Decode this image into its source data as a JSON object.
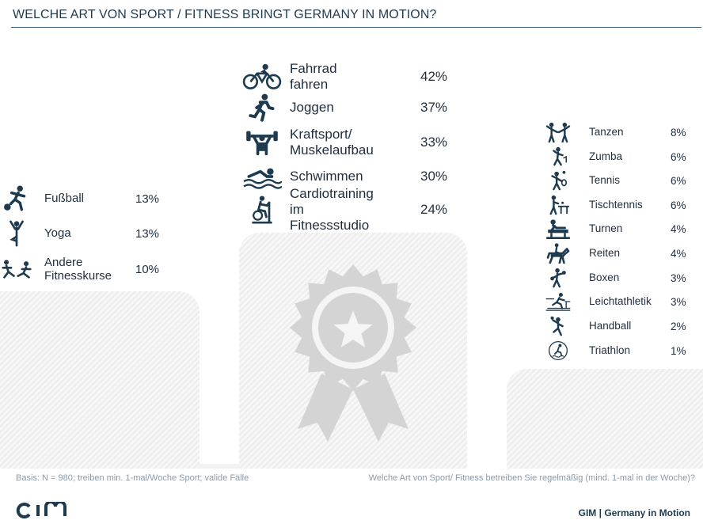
{
  "title": "WELCHE ART VON SPORT / FITNESS BRINGT GERMANY IN MOTION?",
  "chart_data": {
    "type": "table",
    "groups": [
      {
        "name": "center",
        "items": [
          {
            "label": "Fahrrad fahren",
            "value": "42%",
            "icon": "bicycle-icon"
          },
          {
            "label": "Joggen",
            "value": "37%",
            "icon": "jogging-icon"
          },
          {
            "label": "Kraftsport/\nMuskelaufbau",
            "value": "33%",
            "icon": "weightlifting-icon"
          },
          {
            "label": "Schwimmen",
            "value": "30%",
            "icon": "swimming-icon"
          },
          {
            "label": "Cardiotraining\nim Fitnessstudio",
            "value": "24%",
            "icon": "exercise-bike-icon"
          }
        ]
      },
      {
        "name": "left",
        "items": [
          {
            "label": "Fußball",
            "value": "13%",
            "icon": "football-icon"
          },
          {
            "label": "Yoga",
            "value": "13%",
            "icon": "yoga-icon"
          },
          {
            "label": "Andere\nFitnesskurse",
            "value": "10%",
            "icon": "fitness-class-icon"
          }
        ]
      },
      {
        "name": "right",
        "items": [
          {
            "label": "Tanzen",
            "value": "8%",
            "icon": "dance-icon"
          },
          {
            "label": "Zumba",
            "value": "6%",
            "icon": "zumba-icon"
          },
          {
            "label": "Tennis",
            "value": "6%",
            "icon": "tennis-icon"
          },
          {
            "label": "Tischtennis",
            "value": "6%",
            "icon": "table-tennis-icon"
          },
          {
            "label": "Turnen",
            "value": "4%",
            "icon": "gymnastics-icon"
          },
          {
            "label": "Reiten",
            "value": "4%",
            "icon": "horse-riding-icon"
          },
          {
            "label": "Boxen",
            "value": "3%",
            "icon": "boxing-icon"
          },
          {
            "label": "Leichtathletik",
            "value": "3%",
            "icon": "athletics-icon"
          },
          {
            "label": "Handball",
            "value": "2%",
            "icon": "handball-icon"
          },
          {
            "label": "Triathlon",
            "value": "1%",
            "icon": "triathlon-icon"
          }
        ]
      }
    ]
  },
  "footer": {
    "basis": "Basis: N = 980; treiben min. 1-mal/Woche Sport; valide Fälle",
    "question": "Welche Art von Sport/ Fitness betreiben Sie regelmäßig (mind. 1-mal in der Woche)?",
    "brand": "GIM | Germany in Motion"
  },
  "colors": {
    "primary": "#1e3a4f",
    "podium": "#efefef",
    "badge": "#d4d4d4",
    "muted": "#8a99a8"
  },
  "icons": {
    "logo": "gim-logo-icon",
    "badge": "award-badge-icon"
  }
}
